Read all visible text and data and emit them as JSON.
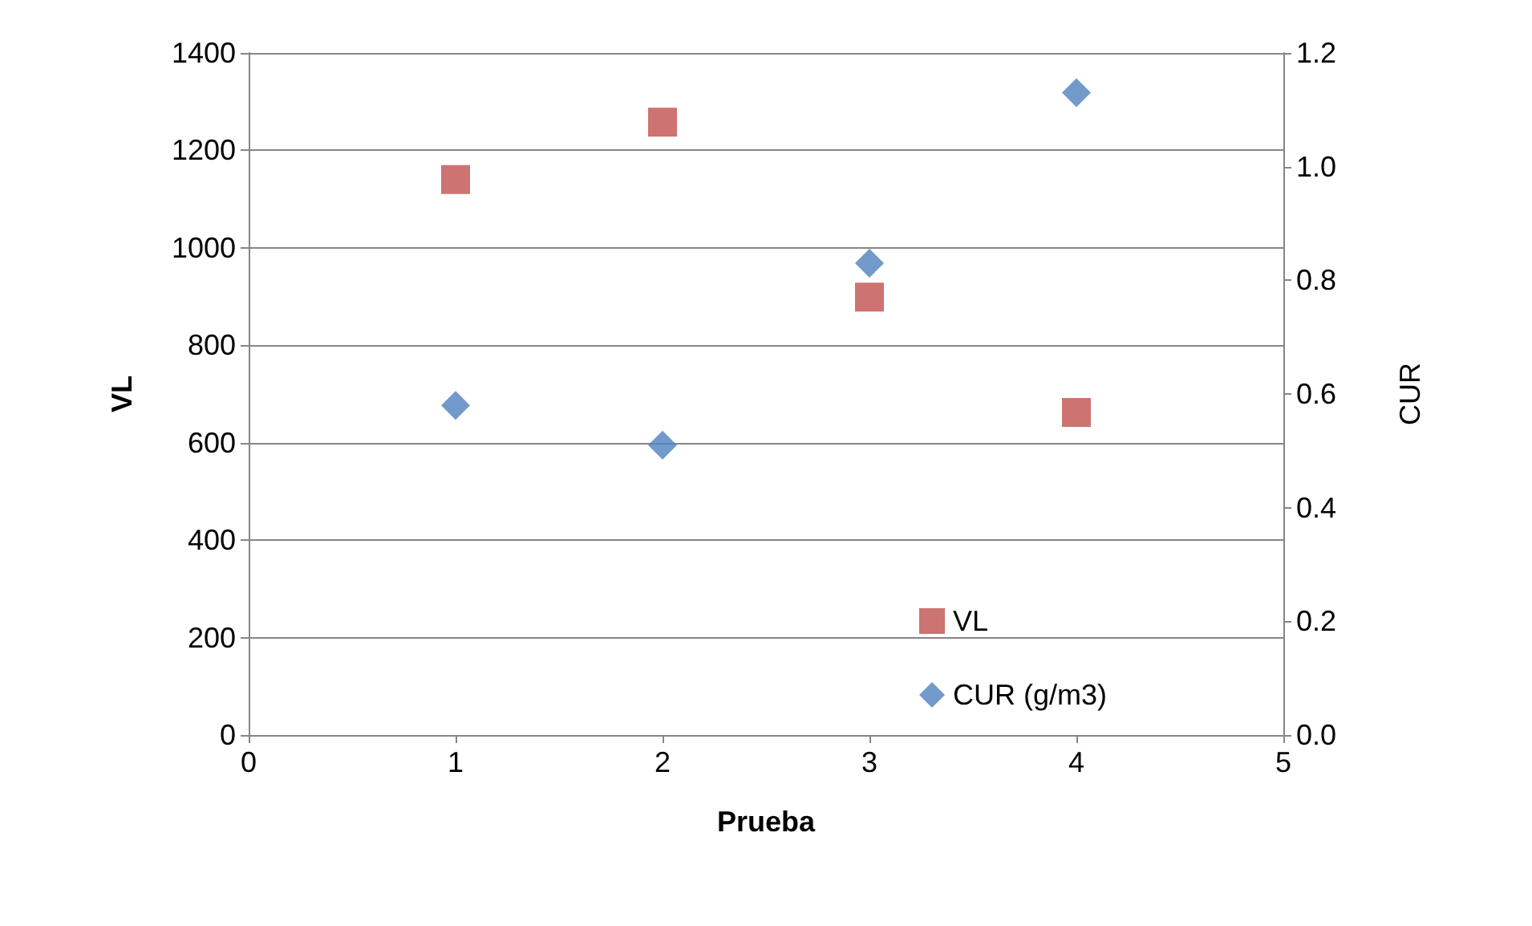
{
  "chart_data": {
    "type": "scatter",
    "xlabel": "Prueba",
    "ylabel": "VL",
    "y2label": "CUR",
    "x": [
      1,
      2,
      3,
      4
    ],
    "series": [
      {
        "name": "VL",
        "color": "#c0504d",
        "marker": "square",
        "values": [
          1140,
          1258,
          899,
          662
        ]
      },
      {
        "name": "CUR (g/m3)",
        "color": "#4f81bd",
        "marker": "diamond",
        "axis": "y2",
        "values": [
          0.58,
          0.51,
          0.83,
          1.13
        ]
      }
    ],
    "xlim": [
      0,
      5
    ],
    "xticks": [
      0,
      1,
      2,
      3,
      4,
      5
    ],
    "ylim": [
      0,
      1400
    ],
    "yticks": [
      0,
      200,
      400,
      600,
      800,
      1000,
      1200,
      1400
    ],
    "y2lim": [
      0,
      1.2
    ],
    "y2ticks": [
      {
        "value": 0,
        "label": "0.0"
      },
      {
        "value": 0.2,
        "label": "0.2"
      },
      {
        "value": 0.4,
        "label": "0.4"
      },
      {
        "value": 0.6,
        "label": "0.6"
      },
      {
        "value": 0.8,
        "label": "0.8"
      },
      {
        "value": 1,
        "label": "1.0"
      },
      {
        "value": 1.2,
        "label": "1.2"
      }
    ],
    "grid": "y",
    "legend": "bottom right"
  }
}
